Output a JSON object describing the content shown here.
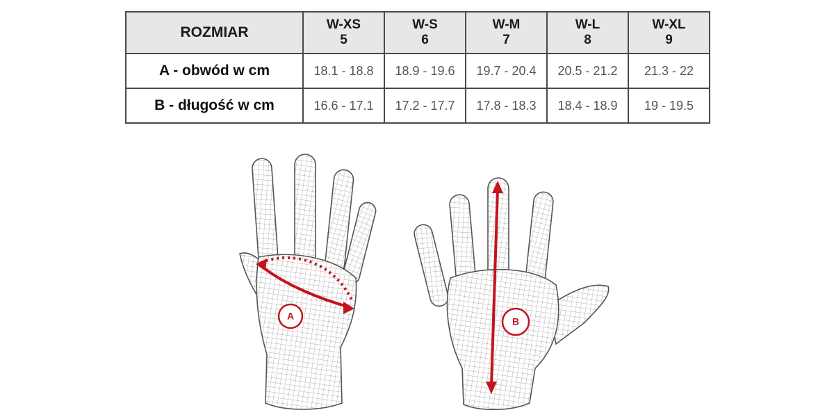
{
  "table": {
    "header": {
      "label": "ROZMIAR",
      "sizes": [
        {
          "size": "W-XS",
          "number": "5"
        },
        {
          "size": "W-S",
          "number": "6"
        },
        {
          "size": "W-M",
          "number": "7"
        },
        {
          "size": "W-L",
          "number": "8"
        },
        {
          "size": "W-XL",
          "number": "9"
        }
      ]
    },
    "rows": [
      [
        "A - obwód w cm",
        "18.1 - 18.8",
        "18.9 - 19.6",
        "19.7 - 20.4",
        "20.5 - 21.2",
        "21.3 - 22"
      ],
      [
        "B - długość w cm",
        "16.6 - 17.1",
        "17.2 - 17.7",
        "17.8 - 18.3",
        "18.4 - 18.9",
        "19 - 19.5"
      ]
    ]
  },
  "figure": {
    "labels": [
      "A",
      "B"
    ]
  }
}
